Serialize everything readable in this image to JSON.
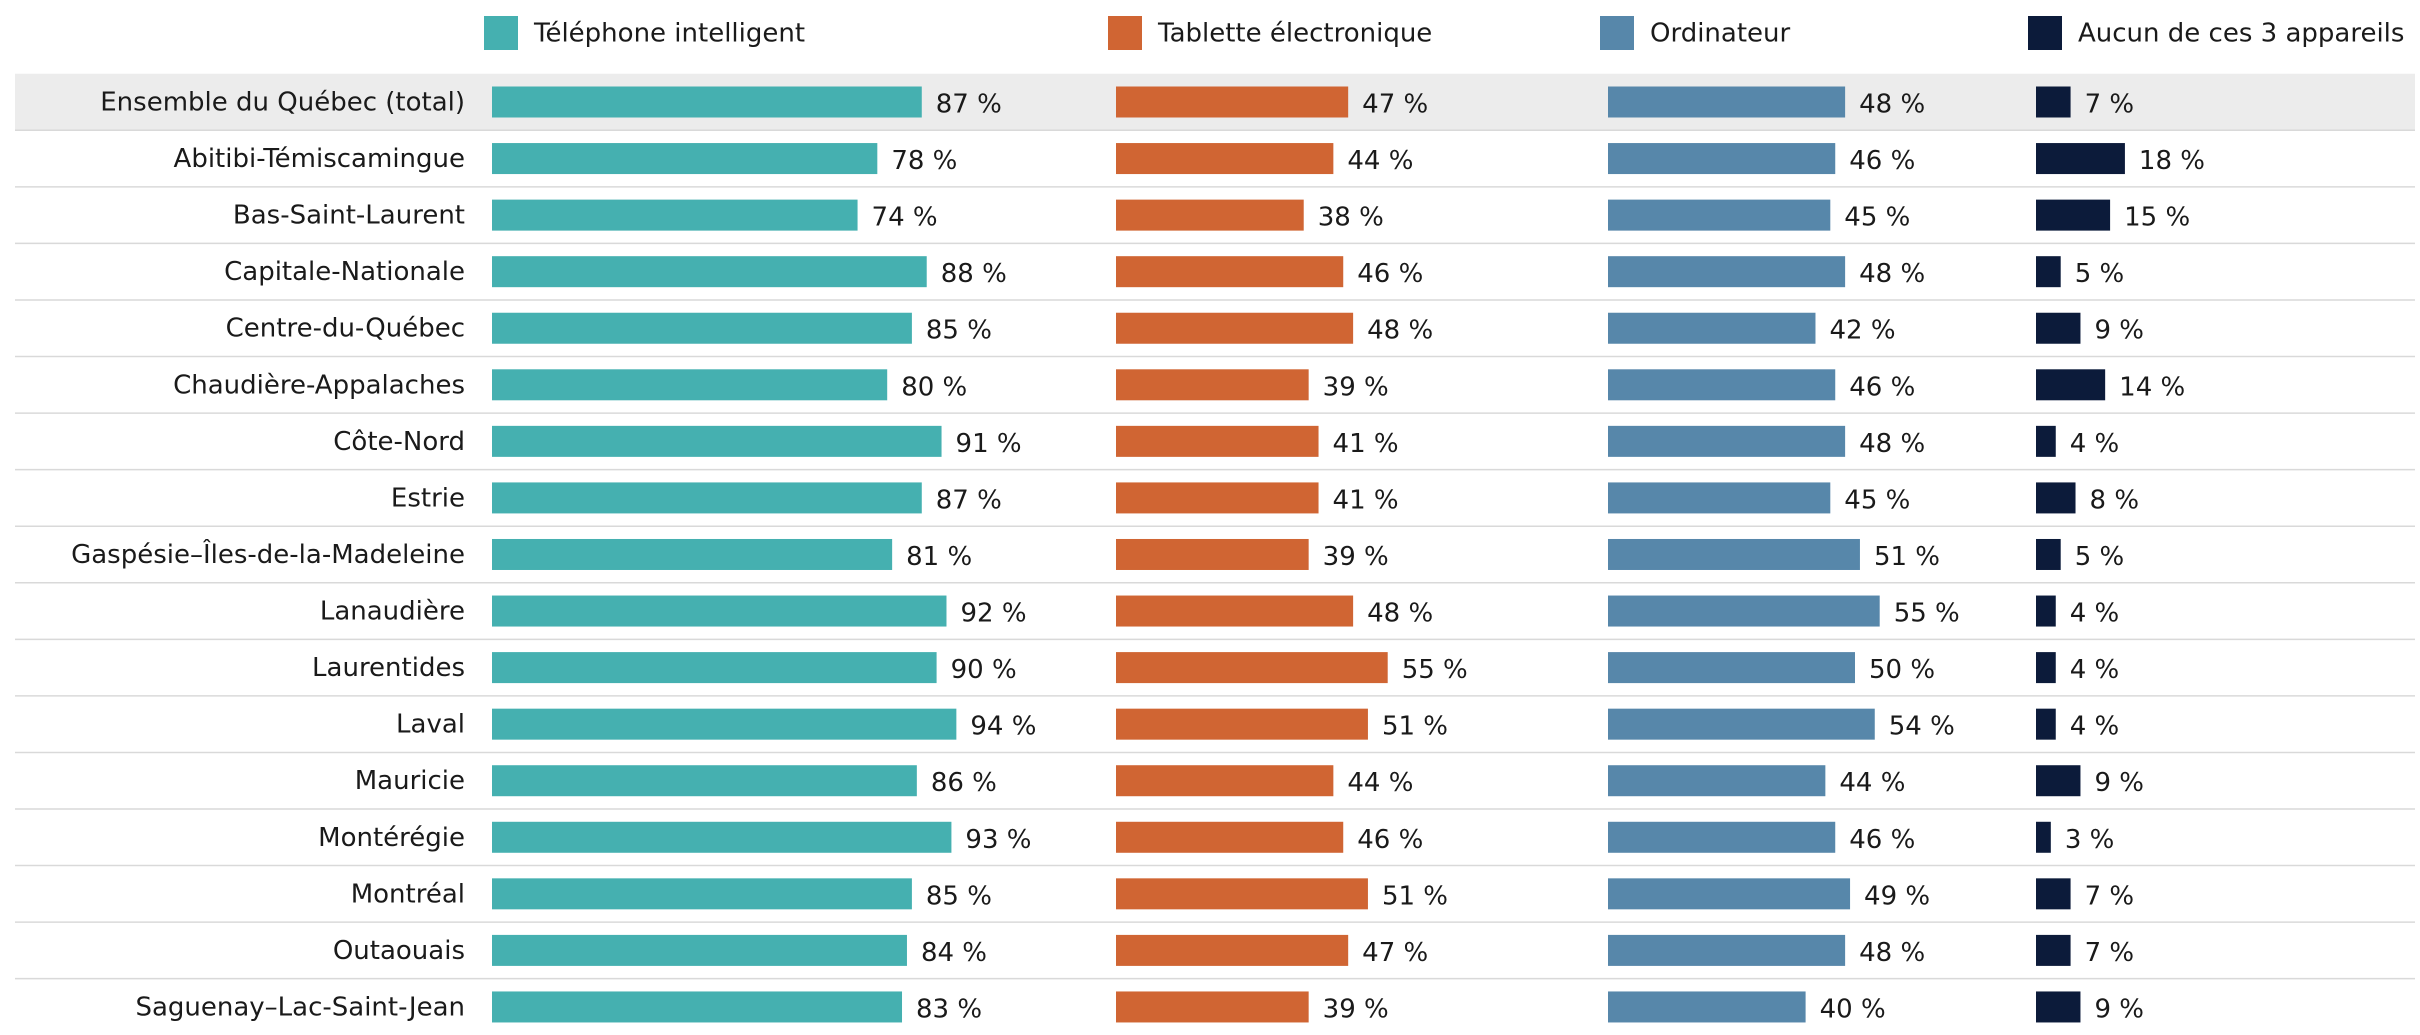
{
  "chart_data": {
    "type": "bar",
    "orientation": "horizontal",
    "categories": [
      "Ensemble du Québec (total)",
      "Abitibi-Témiscamingue",
      "Bas-Saint-Laurent",
      "Capitale-Nationale",
      "Centre-du-Québec",
      "Chaudière-Appalaches",
      "Côte-Nord",
      "Estrie",
      "Gaspésie–Îles-de-la-Madeleine",
      "Lanaudière",
      "Laurentides",
      "Laval",
      "Mauricie",
      "Montérégie",
      "Montréal",
      "Outaouais",
      "Saguenay–Lac-Saint-Jean"
    ],
    "series": [
      {
        "name": "Téléphone intelligent",
        "color": "#45b0b0",
        "values": [
          87,
          78,
          74,
          88,
          85,
          80,
          91,
          87,
          81,
          92,
          90,
          94,
          86,
          93,
          85,
          84,
          83
        ],
        "value_labels": [
          "87 %",
          "78 %",
          "74 %",
          "88 %",
          "85 %",
          "80 %",
          "91 %",
          "87 %",
          "81 %",
          "92 %",
          "90 %",
          "94 %",
          "86 %",
          "93 %",
          "85 %",
          "84 %",
          "83 %"
        ]
      },
      {
        "name": "Tablette électronique",
        "color": "#d06533",
        "values": [
          47,
          44,
          38,
          46,
          48,
          39,
          41,
          41,
          39,
          48,
          55,
          51,
          44,
          46,
          51,
          47,
          39
        ],
        "value_labels": [
          "47 %",
          "44 %",
          "38 %",
          "46 %",
          "48 %",
          "39 %",
          "41 %",
          "41 %",
          "39 %",
          "48 %",
          "55 %",
          "51 %",
          "44 %",
          "46 %",
          "51 %",
          "47 %",
          "39 %"
        ]
      },
      {
        "name": "Ordinateur",
        "color": "#5787aa",
        "values": [
          48,
          46,
          45,
          48,
          42,
          46,
          48,
          45,
          51,
          55,
          50,
          54,
          44,
          46,
          49,
          48,
          40
        ],
        "value_labels": [
          "48 %",
          "46 %",
          "45 %",
          "48 %",
          "42 %",
          "46 %",
          "48 %",
          "45 %",
          "51 %",
          "55 %",
          "50 %",
          "54 %",
          "44 %",
          "46 %",
          "49 %",
          "48 %",
          "40 %"
        ]
      },
      {
        "name": "Aucun de ces 3 appareils",
        "color": "#0c1b3a",
        "values": [
          7,
          18,
          15,
          5,
          9,
          14,
          4,
          8,
          5,
          4,
          4,
          4,
          9,
          3,
          7,
          7,
          9
        ],
        "value_labels": [
          "7 %",
          "18 %",
          "15 %",
          "5 %",
          "9 %",
          "14 %",
          "4 %",
          "8 %",
          "5 %",
          "4 %",
          "4 %",
          "4 %",
          "9 %",
          "3 %",
          "7 %",
          "7 %",
          "9 %"
        ]
      }
    ]
  }
}
